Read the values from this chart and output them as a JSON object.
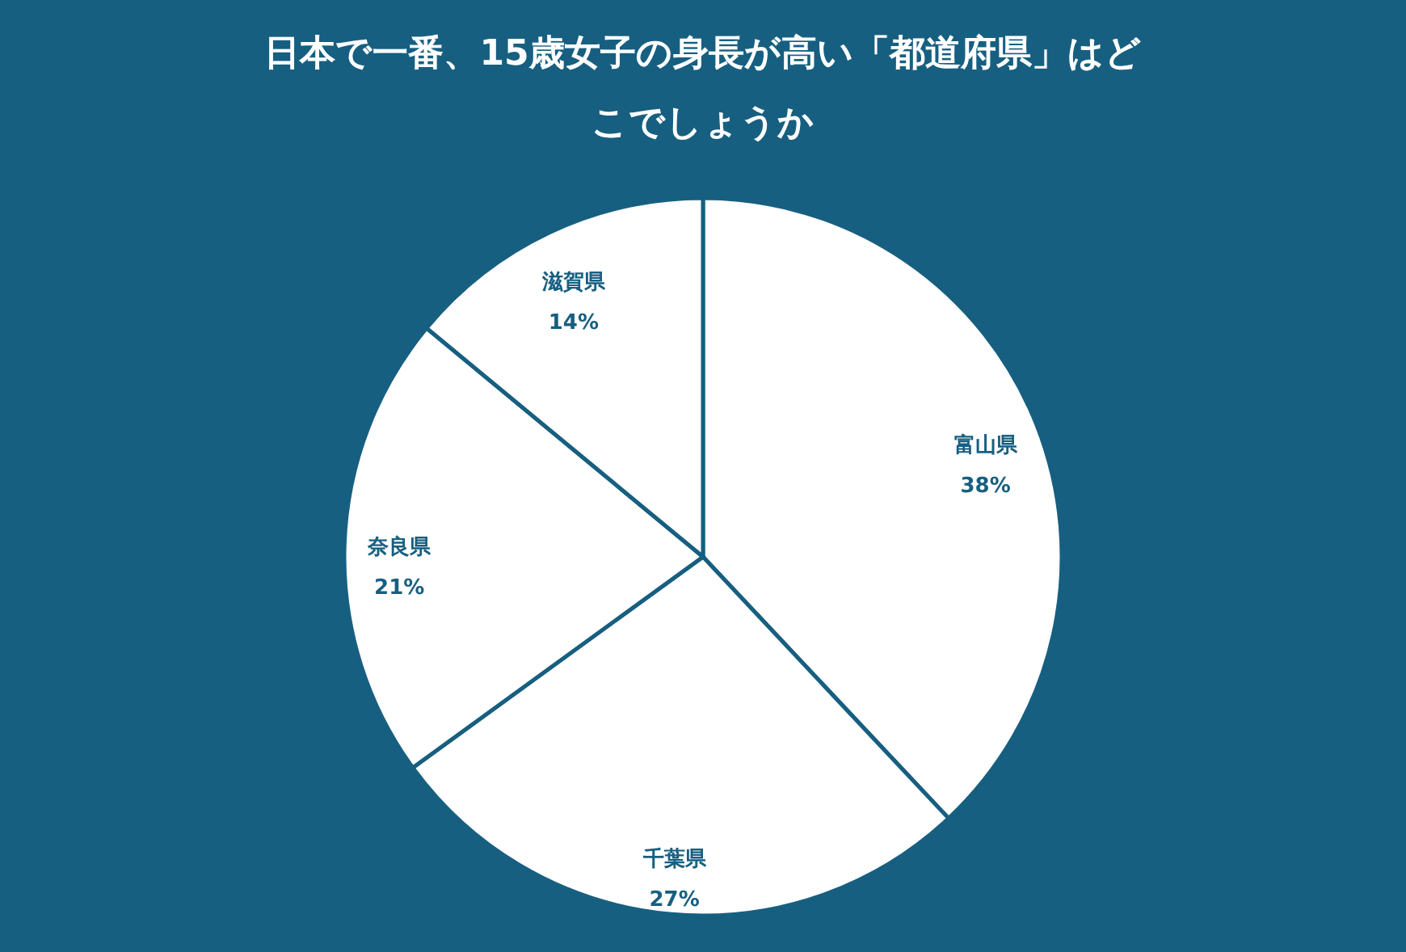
{
  "chart_data": {
    "type": "pie",
    "title": "日本で一番、15歳女子の身長が高い「都道府県」はどこでしょうか",
    "categories": [
      "富山県",
      "千葉県",
      "奈良県",
      "滋賀県"
    ],
    "values": [
      38,
      27,
      21,
      14
    ],
    "value_labels": [
      "38%",
      "27%",
      "21%",
      "14%"
    ],
    "colors": [
      "#ffffff",
      "#ffffff",
      "#ffffff",
      "#ffffff"
    ]
  }
}
